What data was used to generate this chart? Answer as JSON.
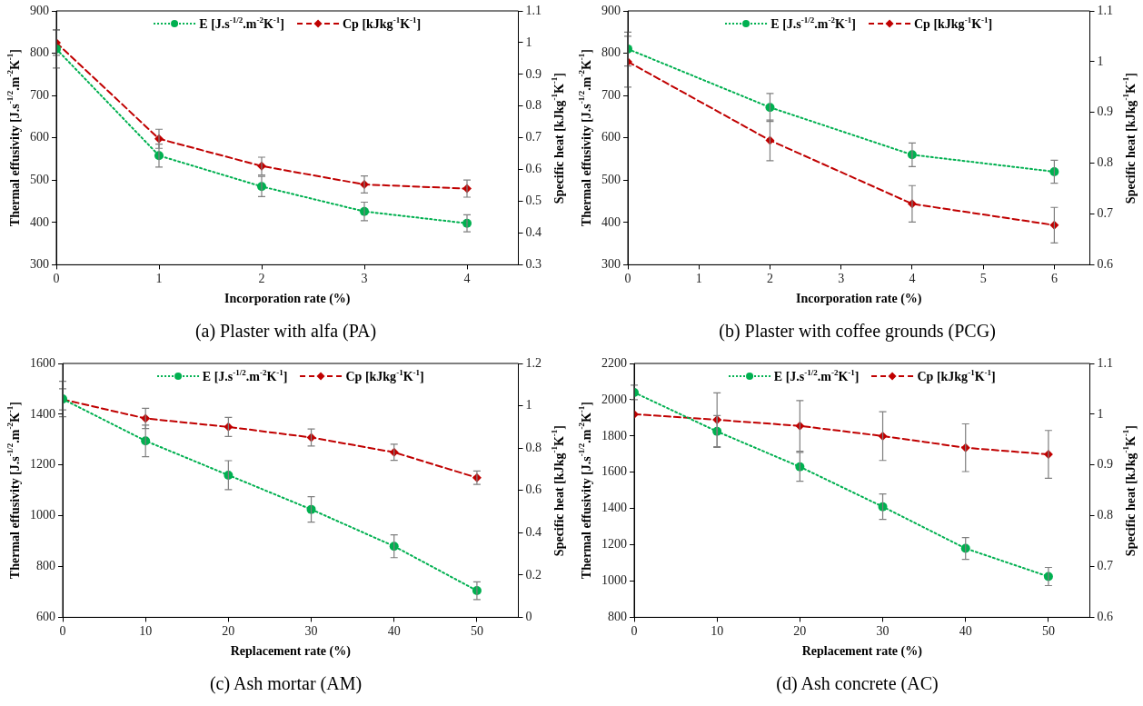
{
  "chart_data": [
    {
      "type": "line",
      "title": "(a) Plaster with alfa (PA)",
      "xlabel": "Incorporation rate (%)",
      "ylabel": "Thermal effusivity [J.s$^{-1/2}$.m$^{-2}$K$^{-1}$]",
      "y2label": "Specific heat [kJkg$^{-1}$K$^{-1}$]",
      "x": [
        0,
        1,
        2,
        3,
        4
      ],
      "xlim": [
        0,
        4.5
      ],
      "xticks": [
        0,
        1,
        2,
        3,
        4
      ],
      "ylim": [
        300,
        900
      ],
      "yticks": [
        300,
        400,
        500,
        600,
        700,
        800,
        900
      ],
      "y2lim": [
        0.3,
        1.1
      ],
      "y2ticks": [
        0.3,
        0.4,
        0.5,
        0.6,
        0.7,
        0.8,
        0.9,
        1,
        1.1
      ],
      "legend": "top",
      "series": [
        {
          "name": "E [J.s$^{-1/2}$.m$^{-2}$K$^{-1}$]",
          "color": "#00b050",
          "values": [
            810,
            558,
            485,
            426,
            398
          ],
          "errors": [
            45,
            27,
            24,
            22,
            20
          ],
          "marker": "circle",
          "line_style": "dotted"
        },
        {
          "name": "Cp [kJkg$^{-1}$K$^{-1}$]",
          "color": "#c00000",
          "values": [
            1.0,
            0.697,
            0.611,
            0.553,
            0.54
          ],
          "errors": [
            0.04,
            0.03,
            0.028,
            0.027,
            0.027
          ],
          "marker": "diamond",
          "line_style": "dashed",
          "axis": "y2"
        }
      ]
    },
    {
      "type": "line",
      "title": "(b) Plaster with coffee grounds (PCG)",
      "xlabel": "Incorporation rate (%)",
      "ylabel": "Thermal effusivity [J.s$^{-1/2}$.m$^{-2}$K$^{-1}$]",
      "y2label": "Specific heat [kJkg$^{-1}$K$^{-1}$]",
      "x": [
        0,
        2,
        4,
        6
      ],
      "xlim": [
        0,
        6.5
      ],
      "xticks": [
        0,
        1,
        2,
        3,
        4,
        5,
        6
      ],
      "ylim": [
        300,
        900
      ],
      "yticks": [
        300,
        400,
        500,
        600,
        700,
        800,
        900
      ],
      "y2lim": [
        0.6,
        1.1
      ],
      "y2ticks": [
        0.6,
        0.7,
        0.8,
        0.9,
        1,
        1.1
      ],
      "legend": "top",
      "series": [
        {
          "name": "E [J.s$^{-1/2}$.m$^{-2}$K$^{-1}$]",
          "color": "#00b050",
          "values": [
            810,
            672,
            560,
            520
          ],
          "errors": [
            40,
            33,
            28,
            27
          ],
          "marker": "circle",
          "line_style": "dotted"
        },
        {
          "name": "Cp [kJkg$^{-1}$K$^{-1}$]",
          "color": "#c00000",
          "values": [
            1.0,
            0.845,
            0.72,
            0.678
          ],
          "errors": [
            0.05,
            0.04,
            0.036,
            0.035
          ],
          "marker": "diamond",
          "line_style": "dashed",
          "axis": "y2"
        }
      ]
    },
    {
      "type": "line",
      "title": "(c) Ash mortar (AM)",
      "xlabel": "Replacement rate (%)",
      "ylabel": "Thermal effusivity [J.s$^{-1/2}$.m$^{-2}$K$^{-1}$]",
      "y2label": "Specific heat [kJkg$^{-1}$K$^{-1}$]",
      "x": [
        0,
        10,
        20,
        30,
        40,
        50
      ],
      "xlim": [
        0,
        55
      ],
      "xticks": [
        0,
        10,
        20,
        30,
        40,
        50
      ],
      "ylim": [
        600,
        1600
      ],
      "yticks": [
        600,
        800,
        1000,
        1200,
        1400,
        1600
      ],
      "y2lim": [
        0,
        1.2
      ],
      "y2ticks": [
        0,
        0.2,
        0.4,
        0.6,
        0.8,
        1,
        1.2
      ],
      "legend": "top",
      "series": [
        {
          "name": "E [J.s$^{-1/2}$.m$^{-2}$K$^{-1}$]",
          "color": "#00b050",
          "values": [
            1460,
            1295,
            1160,
            1025,
            880,
            705
          ],
          "errors": [
            70,
            62,
            57,
            50,
            45,
            35
          ],
          "marker": "circle",
          "line_style": "dotted"
        },
        {
          "name": "Cp [kJkg$^{-1}$K$^{-1}$]",
          "color": "#c00000",
          "values": [
            1.03,
            0.94,
            0.9,
            0.85,
            0.78,
            0.66
          ],
          "errors": [
            0.05,
            0.048,
            0.045,
            0.04,
            0.038,
            0.032
          ],
          "marker": "diamond",
          "line_style": "dashed",
          "axis": "y2"
        }
      ]
    },
    {
      "type": "line",
      "title": "(d) Ash concrete (AC)",
      "xlabel": "Replacement rate (%)",
      "ylabel": "Thermal effusivity [J.s$^{-1/2}$.m$^{-2}$K$^{-1}$]",
      "y2label": "Specific heat [kJkg$^{-1}$K$^{-1}$]",
      "x": [
        0,
        10,
        20,
        30,
        40,
        50
      ],
      "xlim": [
        0,
        55
      ],
      "xticks": [
        0,
        10,
        20,
        30,
        40,
        50
      ],
      "ylim": [
        800,
        2200
      ],
      "yticks": [
        800,
        1000,
        1200,
        1400,
        1600,
        1800,
        2000,
        2200
      ],
      "y2lim": [
        0.6,
        1.1
      ],
      "y2ticks": [
        0.6,
        0.7,
        0.8,
        0.9,
        1,
        1.1
      ],
      "legend": "top",
      "series": [
        {
          "name": "E [J.s$^{-1/2}$.m$^{-2}$K$^{-1}$]",
          "color": "#00b050",
          "values": [
            2040,
            1825,
            1630,
            1410,
            1180,
            1025
          ],
          "errors": [
            40,
            88,
            80,
            70,
            60,
            50
          ],
          "marker": "circle",
          "line_style": "dotted"
        },
        {
          "name": "Cp [kJkg$^{-1}$K$^{-1}$]",
          "color": "#c00000",
          "values": [
            1.0,
            0.989,
            0.977,
            0.957,
            0.934,
            0.921
          ],
          "errors": [
            null,
            0.053,
            0.05,
            0.048,
            0.047,
            0.047
          ],
          "marker": "diamond",
          "line_style": "dashed",
          "axis": "y2"
        }
      ]
    }
  ]
}
